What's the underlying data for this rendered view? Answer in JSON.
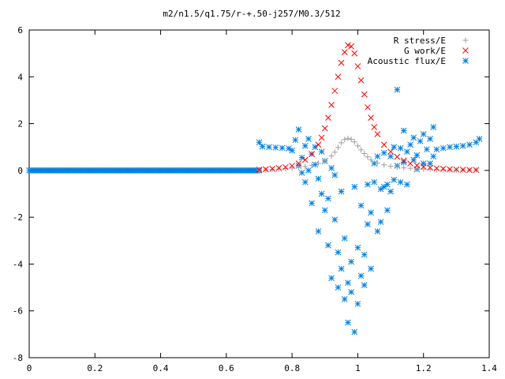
{
  "chart_data": {
    "type": "scatter",
    "title": "m2/n1.5/q1.75/r-+.50-j257/M0.3/512",
    "xlabel": "",
    "ylabel": "",
    "xlim": [
      0,
      1.4
    ],
    "ylim": [
      -8,
      6
    ],
    "xticks": [
      "0",
      "0.2",
      "0.4",
      "0.6",
      "0.8",
      "1",
      "1.2",
      "1.4"
    ],
    "yticks": [
      "-8",
      "-6",
      "-4",
      "-2",
      "0",
      "2",
      "4",
      "6"
    ],
    "grid": false,
    "legend_position": "top-right",
    "series": [
      {
        "name": "R stress/E",
        "marker": "+",
        "color": "#a0a0a0",
        "points": [
          [
            0.7,
            0.02
          ],
          [
            0.72,
            0.03
          ],
          [
            0.74,
            0.04
          ],
          [
            0.76,
            0.06
          ],
          [
            0.78,
            0.08
          ],
          [
            0.8,
            0.1
          ],
          [
            0.82,
            0.13
          ],
          [
            0.84,
            0.17
          ],
          [
            0.86,
            0.22
          ],
          [
            0.88,
            0.3
          ],
          [
            0.9,
            0.42
          ],
          [
            0.92,
            0.62
          ],
          [
            0.93,
            0.78
          ],
          [
            0.94,
            0.98
          ],
          [
            0.95,
            1.18
          ],
          [
            0.96,
            1.32
          ],
          [
            0.97,
            1.37
          ],
          [
            0.98,
            1.33
          ],
          [
            0.99,
            1.22
          ],
          [
            1.0,
            1.05
          ],
          [
            1.01,
            0.88
          ],
          [
            1.02,
            0.72
          ],
          [
            1.03,
            0.58
          ],
          [
            1.04,
            0.46
          ],
          [
            1.06,
            0.32
          ],
          [
            1.08,
            0.24
          ],
          [
            1.1,
            0.18
          ],
          [
            1.12,
            0.14
          ],
          [
            1.14,
            0.11
          ],
          [
            1.16,
            0.09
          ],
          [
            1.18,
            0.07
          ],
          [
            1.2,
            0.06
          ],
          [
            1.22,
            0.05
          ],
          [
            1.24,
            0.04
          ],
          [
            1.26,
            0.03
          ],
          [
            1.28,
            0.03
          ],
          [
            1.3,
            0.02
          ],
          [
            1.32,
            0.02
          ],
          [
            1.34,
            0.02
          ],
          [
            1.36,
            0.02
          ]
        ]
      },
      {
        "name": "G work/E",
        "marker": "x",
        "color": "#ff0000",
        "points": [
          [
            0.7,
            0.03
          ],
          [
            0.72,
            0.05
          ],
          [
            0.74,
            0.07
          ],
          [
            0.76,
            0.1
          ],
          [
            0.78,
            0.14
          ],
          [
            0.8,
            0.2
          ],
          [
            0.82,
            0.3
          ],
          [
            0.84,
            0.45
          ],
          [
            0.86,
            0.7
          ],
          [
            0.88,
            1.1
          ],
          [
            0.89,
            1.4
          ],
          [
            0.9,
            1.8
          ],
          [
            0.91,
            2.25
          ],
          [
            0.92,
            2.8
          ],
          [
            0.93,
            3.4
          ],
          [
            0.94,
            4.0
          ],
          [
            0.95,
            4.6
          ],
          [
            0.96,
            5.05
          ],
          [
            0.97,
            5.35
          ],
          [
            0.98,
            5.3
          ],
          [
            0.99,
            5.0
          ],
          [
            1.0,
            4.45
          ],
          [
            1.01,
            3.85
          ],
          [
            1.02,
            3.25
          ],
          [
            1.03,
            2.7
          ],
          [
            1.04,
            2.25
          ],
          [
            1.05,
            1.85
          ],
          [
            1.06,
            1.55
          ],
          [
            1.08,
            1.1
          ],
          [
            1.1,
            0.8
          ],
          [
            1.12,
            0.58
          ],
          [
            1.14,
            0.42
          ],
          [
            1.16,
            0.3
          ],
          [
            1.18,
            0.22
          ],
          [
            1.2,
            0.16
          ],
          [
            1.22,
            0.12
          ],
          [
            1.24,
            0.09
          ],
          [
            1.26,
            0.07
          ],
          [
            1.28,
            0.05
          ],
          [
            1.3,
            0.04
          ],
          [
            1.32,
            0.03
          ],
          [
            1.34,
            0.02
          ],
          [
            1.36,
            0.02
          ]
        ]
      },
      {
        "name": "Acoustic flux/E",
        "marker": "*",
        "color": "#0080e0",
        "points": [
          [
            0.7,
            1.2
          ],
          [
            0.71,
            1.02
          ],
          [
            0.73,
            1.0
          ],
          [
            0.75,
            0.98
          ],
          [
            0.77,
            0.96
          ],
          [
            0.79,
            0.94
          ],
          [
            0.8,
            0.85
          ],
          [
            0.81,
            1.3
          ],
          [
            0.82,
            1.75
          ],
          [
            0.82,
            0.2
          ],
          [
            0.83,
            0.55
          ],
          [
            0.83,
            -0.1
          ],
          [
            0.84,
            1.05
          ],
          [
            0.84,
            -0.5
          ],
          [
            0.85,
            1.35
          ],
          [
            0.85,
            0.0
          ],
          [
            0.86,
            0.7
          ],
          [
            0.86,
            -1.4
          ],
          [
            0.87,
            1.0
          ],
          [
            0.87,
            0.25
          ],
          [
            0.88,
            -0.35
          ],
          [
            0.88,
            -2.6
          ],
          [
            0.89,
            -1.0
          ],
          [
            0.89,
            0.8
          ],
          [
            0.9,
            -1.7
          ],
          [
            0.9,
            0.4
          ],
          [
            0.91,
            -1.2
          ],
          [
            0.91,
            -3.2
          ],
          [
            0.92,
            0.1
          ],
          [
            0.92,
            -4.6
          ],
          [
            0.93,
            -2.1
          ],
          [
            0.93,
            -0.2
          ],
          [
            0.94,
            -3.5
          ],
          [
            0.94,
            -5.0
          ],
          [
            0.95,
            -4.2
          ],
          [
            0.95,
            -0.9
          ],
          [
            0.96,
            -5.5
          ],
          [
            0.96,
            -2.9
          ],
          [
            0.97,
            -4.8
          ],
          [
            0.97,
            -6.5
          ],
          [
            0.98,
            -3.9
          ],
          [
            0.98,
            -5.2
          ],
          [
            0.99,
            -6.9
          ],
          [
            0.99,
            -0.7
          ],
          [
            1.0,
            -3.3
          ],
          [
            1.0,
            -5.7
          ],
          [
            1.01,
            -4.5
          ],
          [
            1.01,
            -1.5
          ],
          [
            1.02,
            -3.6
          ],
          [
            1.02,
            -4.9
          ],
          [
            1.03,
            -2.3
          ],
          [
            1.03,
            -0.6
          ],
          [
            1.04,
            -4.2
          ],
          [
            1.04,
            -1.8
          ],
          [
            1.05,
            -0.5
          ],
          [
            1.05,
            0.3
          ],
          [
            1.06,
            -2.6
          ],
          [
            1.06,
            0.6
          ],
          [
            1.07,
            -0.8
          ],
          [
            1.07,
            -2.2
          ],
          [
            1.08,
            -0.7
          ],
          [
            1.08,
            0.75
          ],
          [
            1.09,
            -1.7
          ],
          [
            1.09,
            -0.6
          ],
          [
            1.1,
            0.6
          ],
          [
            1.1,
            -0.9
          ],
          [
            1.11,
            1.0
          ],
          [
            1.11,
            -0.4
          ],
          [
            1.12,
            3.45
          ],
          [
            1.12,
            0.2
          ],
          [
            1.13,
            0.95
          ],
          [
            1.13,
            -0.5
          ],
          [
            1.14,
            1.7
          ],
          [
            1.14,
            0.35
          ],
          [
            1.15,
            -0.6
          ],
          [
            1.15,
            0.8
          ],
          [
            1.16,
            1.1
          ],
          [
            1.17,
            0.45
          ],
          [
            1.17,
            1.4
          ],
          [
            1.18,
            0.05
          ],
          [
            1.18,
            0.65
          ],
          [
            1.19,
            1.25
          ],
          [
            1.2,
            0.3
          ],
          [
            1.2,
            1.55
          ],
          [
            1.21,
            0.9
          ],
          [
            1.22,
            1.35
          ],
          [
            1.22,
            0.3
          ],
          [
            1.23,
            1.85
          ],
          [
            1.23,
            0.6
          ],
          [
            1.24,
            0.9
          ],
          [
            1.26,
            0.95
          ],
          [
            1.28,
            1.0
          ],
          [
            1.3,
            1.02
          ],
          [
            1.32,
            1.05
          ],
          [
            1.34,
            1.1
          ],
          [
            1.36,
            1.2
          ],
          [
            1.37,
            1.35
          ]
        ],
        "baseline": {
          "from": 0.0,
          "to": 0.7,
          "value": 0.0
        }
      }
    ]
  }
}
